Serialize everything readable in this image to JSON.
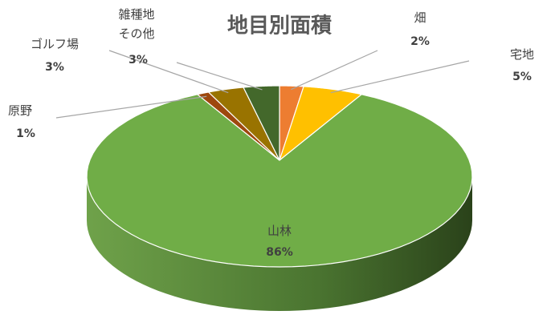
{
  "chart_data": {
    "type": "pie3d",
    "title": "地目別面積",
    "categories": [
      "畑",
      "宅地",
      "山林",
      "原野",
      "ゴルフ場",
      "雑種地\nその他"
    ],
    "values": [
      2,
      5,
      86,
      1,
      3,
      3
    ],
    "value_labels": [
      "2%",
      "5%",
      "86%",
      "1%",
      "3%",
      "3%"
    ],
    "colors": [
      "#ed7d31",
      "#ffc000",
      "#70ad47",
      "#9e480e",
      "#997300",
      "#43682b"
    ]
  }
}
